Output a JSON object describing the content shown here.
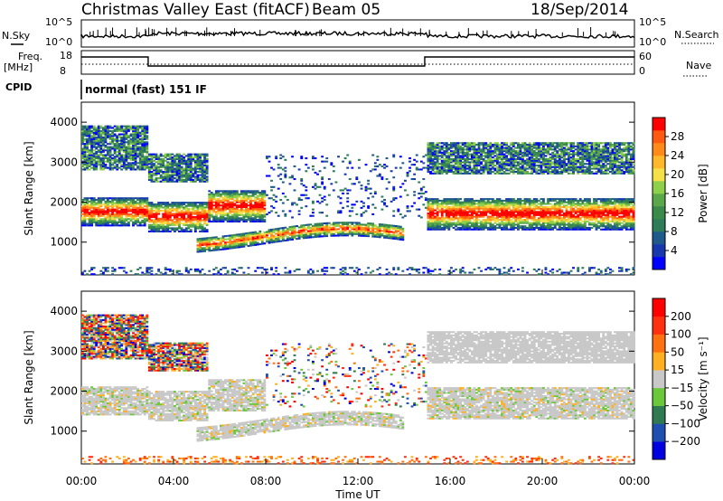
{
  "header": {
    "title": "Christmas Valley East (fitACF)",
    "beam": "Beam 05",
    "date": "18/Sep/2014",
    "cpid_label": "CPID",
    "cpid_value": "normal (fast) 151 IF"
  },
  "strip_panels": {
    "nsky_label": "N.Sky",
    "nsky_ticks": [
      "10^5",
      "10^0"
    ],
    "nsearch_label": "N.Search",
    "nsearch_ticks": [
      "10^5",
      "10^0"
    ],
    "freq_label_1": "Freq.",
    "freq_label_2": "[MHz]",
    "freq_ticks": [
      "18",
      "8"
    ],
    "nave_label": "Nave",
    "nave_ticks": [
      "60",
      "0"
    ]
  },
  "chart_data": [
    {
      "type": "heatmap",
      "ylabel": "Slant Range [km]",
      "yticks": [
        1000,
        2000,
        3000,
        4000
      ],
      "ylim": [
        180,
        4500
      ],
      "xlim": [
        0,
        24
      ],
      "colorbar": {
        "label": "Power [dB]",
        "ticks": [
          "28",
          "24",
          "20",
          "16",
          "12",
          "8",
          "4"
        ],
        "colors": [
          "#0000ff",
          "#1838b0",
          "#1e5a8c",
          "#2e7d58",
          "#3a8a4a",
          "#5aa84a",
          "#8fd04a",
          "#f5e04a",
          "#ffb82a",
          "#ff8a1a",
          "#ff5a10",
          "#ff0000"
        ]
      }
    },
    {
      "type": "heatmap",
      "ylabel": "Slant Range [km]",
      "yticks": [
        1000,
        2000,
        3000,
        4000
      ],
      "ylim": [
        180,
        4500
      ],
      "xlim": [
        0,
        24
      ],
      "colorbar": {
        "label": "Velocity [m s⁻¹]",
        "ticks": [
          "200",
          "100",
          "50",
          "15",
          "−15",
          "−50",
          "−100",
          "−200"
        ],
        "colors": [
          "#0000e0",
          "#1f4fb0",
          "#2f7a50",
          "#6ac83a",
          "#c8c8c8",
          "#ffb020",
          "#ff7010",
          "#ff3010",
          "#ff0000"
        ]
      }
    }
  ],
  "xaxis": {
    "label": "Time UT",
    "ticks": [
      "00:00",
      "04:00",
      "08:00",
      "12:00",
      "16:00",
      "20:00",
      "00:00"
    ]
  },
  "strip_colors": {
    "line": "#000000",
    "frame": "#000000"
  }
}
